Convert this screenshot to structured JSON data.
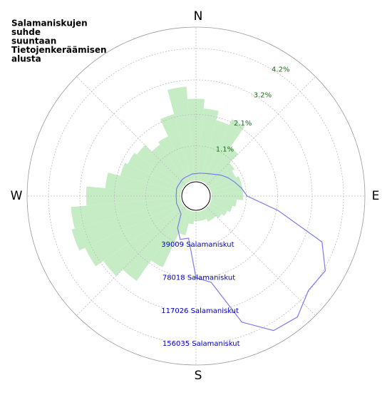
{
  "chart_data": {
    "type": "polar",
    "title": [
      "Salamaniskujen",
      "suhde",
      "suuntaan",
      "Tietojenkeräämisen",
      "alusta"
    ],
    "direction_labels": [
      "N",
      "E",
      "S",
      "W"
    ],
    "angles": [
      0,
      10,
      20,
      30,
      40,
      50,
      60,
      70,
      80,
      90,
      100,
      110,
      120,
      130,
      140,
      150,
      160,
      170,
      180,
      190,
      200,
      210,
      220,
      230,
      240,
      250,
      260,
      270,
      280,
      290,
      300,
      310,
      320,
      330,
      340,
      350
    ],
    "rlim": [
      0,
      4.88
    ],
    "rticks": [
      {
        "value": 1.1,
        "label": "1.1%"
      },
      {
        "value": 2.1,
        "label": "2.1%"
      },
      {
        "value": 3.2,
        "label": "3.2%"
      },
      {
        "value": 4.2,
        "label": "4.2%"
      }
    ],
    "r2lim": [
      0,
      181200
    ],
    "r2ticks": [
      {
        "value": 39009,
        "label": "39009 Salamaniskut"
      },
      {
        "value": 78018,
        "label": "78018 Salamaniskut"
      },
      {
        "value": 117026,
        "label": "117026 Salamaniskut"
      },
      {
        "value": 156035,
        "label": "156035 Salamaniskut"
      }
    ],
    "series": [
      {
        "kind": "bar",
        "color": "#c6ecc6",
        "values": [
          2.6,
          2.3,
          2.0,
          2.2,
          1.4,
          1.0,
          0.9,
          1.0,
          1.0,
          1.0,
          0.8,
          0.7,
          0.6,
          0.5,
          0.4,
          0.4,
          0.3,
          0.3,
          0.3,
          0.4,
          0.8,
          2.0,
          2.8,
          3.1,
          3.4,
          3.6,
          3.5,
          3.0,
          2.4,
          2.0,
          1.9,
          1.8,
          1.5,
          1.6,
          2.2,
          3.0
        ]
      },
      {
        "kind": "line",
        "color": "#7b7bf0",
        "axis": "y2",
        "values": [
          8000,
          9000,
          10000,
          12000,
          15000,
          20000,
          25000,
          30000,
          36000,
          42000,
          80000,
          140000,
          158000,
          155000,
          168000,
          165000,
          140000,
          85000,
          78000,
          32000,
          36000,
          25000,
          9000,
          7000,
          6000,
          6000,
          5000,
          5000,
          5000,
          6000,
          6000,
          6000,
          7000,
          7000,
          7000,
          8000
        ]
      }
    ]
  }
}
